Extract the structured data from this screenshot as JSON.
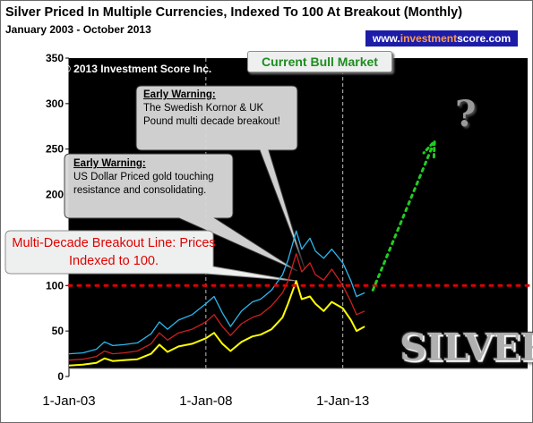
{
  "header": {
    "title": "Silver Priced In Multiple Currencies, Indexed To 100 At Breakout (Monthly)",
    "subtitle": "January 2003 - October 2013",
    "url_prefix": "www.",
    "url_highlight": "investment",
    "url_suffix": "score.com"
  },
  "annotations": {
    "copyright": "© 2013 Investment Score Inc.",
    "current_bull_market": "Current Bull Market",
    "warning1_head": "Early Warning:",
    "warning1_body": "The Swedish Kornor & UK Pound multi decade breakout!",
    "warning2_head": "Early Warning:",
    "warning2_body": "US Dollar Priced gold touching resistance and consolidating.",
    "breakout_line": "Multi-Decade Breakout Line: Prices Indexed to 100.",
    "question_mark": "?",
    "silver_word": "SILVER"
  },
  "chart_data": {
    "type": "line",
    "title": "Silver Priced In Multiple Currencies, Indexed To 100 At Breakout (Monthly)",
    "xlabel": "",
    "ylabel": "",
    "ylim": [
      0,
      350
    ],
    "yticks": [
      "350",
      "300",
      "250",
      "200",
      "150",
      "100",
      "50",
      "0"
    ],
    "xticks": [
      "1-Jan-03",
      "1-Jan-08",
      "1-Jan-13"
    ],
    "background": "#000000",
    "grid": "vertical dashed at 1-Jan-08 and 1-Jan-13",
    "reference_line": {
      "y": 100,
      "color": "#e00000",
      "style": "dotted"
    },
    "projection_arrow": {
      "from": [
        2014.1,
        95
      ],
      "to": [
        2016.3,
        255
      ],
      "color": "#22cc22"
    },
    "colors": [
      "#2ab8f0",
      "#cc2020",
      "#ffff00"
    ],
    "series": [
      {
        "x": [
          2003.0,
          2003.5,
          2004.0,
          2004.3,
          2004.6,
          2005.0,
          2005.5,
          2006.0,
          2006.3,
          2006.6,
          2007.0,
          2007.5,
          2008.0,
          2008.3,
          2008.6,
          2008.9,
          2009.3,
          2009.7,
          2010.0,
          2010.4,
          2010.8,
          2011.0,
          2011.3,
          2011.5,
          2011.8,
          2012.0,
          2012.3,
          2012.6,
          2013.0,
          2013.3,
          2013.5,
          2013.8
        ],
        "values": [
          25,
          26,
          30,
          38,
          34,
          35,
          37,
          47,
          60,
          52,
          62,
          68,
          80,
          88,
          70,
          55,
          72,
          82,
          85,
          95,
          112,
          128,
          160,
          140,
          152,
          138,
          130,
          140,
          125,
          105,
          88,
          92
        ]
      },
      {
        "x": [
          2003.0,
          2003.5,
          2004.0,
          2004.3,
          2004.6,
          2005.0,
          2005.5,
          2006.0,
          2006.3,
          2006.6,
          2007.0,
          2007.5,
          2008.0,
          2008.3,
          2008.6,
          2008.9,
          2009.3,
          2009.7,
          2010.0,
          2010.4,
          2010.8,
          2011.0,
          2011.3,
          2011.5,
          2011.8,
          2012.0,
          2012.3,
          2012.6,
          2013.0,
          2013.3,
          2013.5,
          2013.8
        ],
        "values": [
          18,
          19,
          22,
          28,
          25,
          26,
          28,
          36,
          48,
          40,
          48,
          52,
          60,
          68,
          55,
          45,
          58,
          65,
          68,
          78,
          92,
          105,
          135,
          115,
          125,
          112,
          106,
          118,
          100,
          82,
          68,
          72
        ]
      },
      {
        "x": [
          2003.0,
          2003.5,
          2004.0,
          2004.3,
          2004.6,
          2005.0,
          2005.5,
          2006.0,
          2006.3,
          2006.6,
          2007.0,
          2007.5,
          2008.0,
          2008.3,
          2008.6,
          2008.9,
          2009.3,
          2009.7,
          2010.0,
          2010.4,
          2010.8,
          2011.0,
          2011.3,
          2011.5,
          2011.8,
          2012.0,
          2012.3,
          2012.6,
          2013.0,
          2013.3,
          2013.5,
          2013.8
        ],
        "values": [
          12,
          13,
          15,
          20,
          17,
          18,
          19,
          25,
          35,
          27,
          33,
          36,
          42,
          48,
          36,
          28,
          38,
          44,
          46,
          52,
          65,
          80,
          105,
          85,
          88,
          80,
          72,
          82,
          75,
          62,
          50,
          55
        ]
      }
    ]
  }
}
